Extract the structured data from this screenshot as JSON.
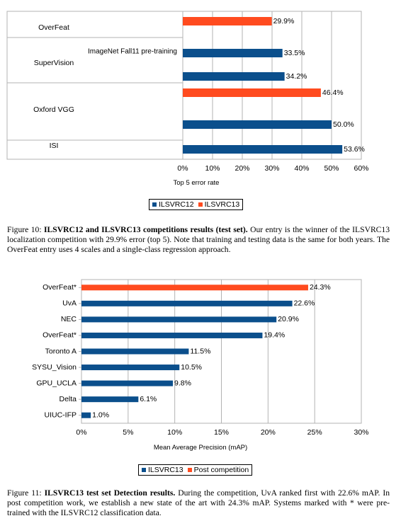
{
  "figure10": {
    "chart_data": {
      "type": "bar",
      "orientation": "horizontal",
      "groups": [
        "OverFeat",
        "SuperVision",
        "Oxford VGG",
        "ISI"
      ],
      "bars": [
        {
          "group": "OverFeat",
          "label": "",
          "series": "ILSVRC13",
          "value": 29.9,
          "value_label": "29.9%"
        },
        {
          "group": "SuperVision",
          "label": "ImageNet Fall11 pre-training",
          "series": "ILSVRC12",
          "value": 33.5,
          "value_label": "33.5%"
        },
        {
          "group": "SuperVision",
          "label": "",
          "series": "ILSVRC12",
          "value": 34.2,
          "value_label": "34.2%"
        },
        {
          "group": "Oxford VGG",
          "label": "",
          "series": "ILSVRC13",
          "value": 46.4,
          "value_label": "46.4%"
        },
        {
          "group": "Oxford VGG",
          "label": "",
          "series": "ILSVRC12",
          "value": 50.0,
          "value_label": "50.0%"
        },
        {
          "group": "ISI",
          "label": "",
          "series": "ILSVRC12",
          "value": 53.6,
          "value_label": "53.6%"
        }
      ],
      "xlabel": "Top 5 error rate",
      "xlim": [
        0,
        60
      ],
      "xticks": [
        "0%",
        "10%",
        "20%",
        "30%",
        "40%",
        "50%",
        "60%"
      ],
      "series": [
        {
          "name": "ILSVRC12",
          "color": "#0b4f8c"
        },
        {
          "name": "ILSVRC13",
          "color": "#ff4b1f"
        }
      ],
      "legend_position": "bottom"
    },
    "caption_label": "Figure 10:",
    "caption_bold": "ILSVRC12 and ILSVRC13 competitions results (test set).",
    "caption_text": "Our entry is the winner of the ILSVRC13 localization competition with 29.9% error (top 5). Note that training and testing data is the same for both years. The OverFeat entry uses 4 scales and a single-class regression approach."
  },
  "figure11": {
    "chart_data": {
      "type": "bar",
      "orientation": "horizontal",
      "categories": [
        "OverFeat*",
        "UvA",
        "NEC",
        "OverFeat*",
        "Toronto A",
        "SYSU_Vision",
        "GPU_UCLA",
        "Delta",
        "UIUC-IFP"
      ],
      "values": [
        24.3,
        22.6,
        20.9,
        19.4,
        11.5,
        10.5,
        9.8,
        6.1,
        1.0
      ],
      "value_labels": [
        "24.3%",
        "22.6%",
        "20.9%",
        "19.4%",
        "11.5%",
        "10.5%",
        "9.8%",
        "6.1%",
        "1.0%"
      ],
      "bar_series": [
        "Post competition",
        "ILSVRC13",
        "ILSVRC13",
        "ILSVRC13",
        "ILSVRC13",
        "ILSVRC13",
        "ILSVRC13",
        "ILSVRC13",
        "ILSVRC13"
      ],
      "xlabel": "Mean Average Precision (mAP)",
      "xlim": [
        0,
        30
      ],
      "xticks": [
        "0%",
        "5%",
        "10%",
        "15%",
        "20%",
        "25%",
        "30%"
      ],
      "series": [
        {
          "name": "ILSVRC13",
          "color": "#0b4f8c"
        },
        {
          "name": "Post competition",
          "color": "#ff4b1f"
        }
      ],
      "legend_position": "bottom"
    },
    "caption_label": "Figure 11:",
    "caption_bold": "ILSVRC13 test set Detection results.",
    "caption_text": "During the competition, UvA ranked first with 22.6% mAP. In post competition work, we establish a new state of the art with 24.3% mAP. Systems marked with * were pre-trained with the ILSVRC12 classification data."
  }
}
